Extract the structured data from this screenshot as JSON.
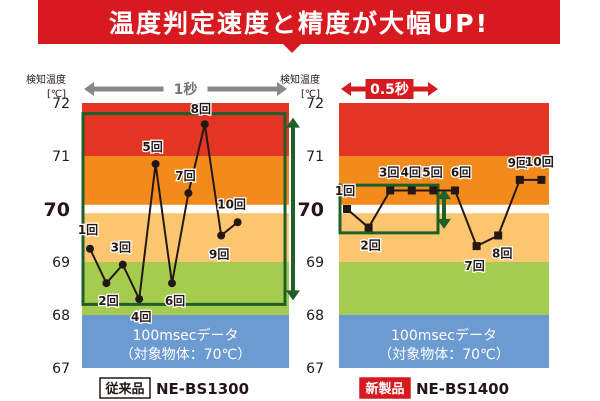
{
  "headline": "温度判定速度と精度が大幅UP!",
  "colors": {
    "band_red": "#e33524",
    "band_orange": "#f28b1c",
    "band_light_orange": "#fbc66f",
    "band_green": "#a5cc4e",
    "band_blue": "#6c9bd2",
    "line": "#231815",
    "box": "#1f5f2a",
    "gray_arrow": "#888888",
    "red": "#d71920"
  },
  "chart_data": [
    {
      "type": "line",
      "product_tag": "従来品",
      "model": "NE-BS1300",
      "axis_title": [
        "検知温度",
        "[℃]"
      ],
      "time_label": "1秒",
      "band_note": [
        "100msecデータ",
        "（対象物体：70℃）"
      ],
      "ylim": [
        67,
        72
      ],
      "y_ticks": [
        72,
        71,
        70,
        69,
        68,
        67
      ],
      "bands": [
        {
          "from": 71.0,
          "to": 72.0,
          "color": "band_red"
        },
        {
          "from": 70.08,
          "to": 71.0,
          "color": "band_orange"
        },
        {
          "from": 69.0,
          "to": 69.92,
          "color": "band_light_orange"
        },
        {
          "from": 68.0,
          "to": 69.0,
          "color": "band_green"
        },
        {
          "from": 67.0,
          "to": 68.0,
          "color": "band_blue"
        }
      ],
      "series": [
        {
          "labels": [
            "1回",
            "2回",
            "3回",
            "4回",
            "5回",
            "6回",
            "7回",
            "8回",
            "9回",
            "10回"
          ],
          "values": [
            69.25,
            68.6,
            68.95,
            68.3,
            70.85,
            68.6,
            70.3,
            71.6,
            69.5,
            69.75
          ]
        }
      ],
      "range_box": [
        68.2,
        71.8
      ]
    },
    {
      "type": "line",
      "product_tag": "新製品",
      "model": "NE-BS1400",
      "axis_title": [
        "検知温度",
        "[℃]"
      ],
      "time_label": "0.5秒",
      "band_note": [
        "100msecデータ",
        "（対象物体：70℃）"
      ],
      "ylim": [
        67,
        72
      ],
      "y_ticks": [
        72,
        71,
        70,
        69,
        68,
        67
      ],
      "bands": [
        {
          "from": 71.0,
          "to": 72.0,
          "color": "band_red"
        },
        {
          "from": 70.08,
          "to": 71.0,
          "color": "band_orange"
        },
        {
          "from": 69.0,
          "to": 69.92,
          "color": "band_light_orange"
        },
        {
          "from": 68.0,
          "to": 69.0,
          "color": "band_green"
        },
        {
          "from": 67.0,
          "to": 68.0,
          "color": "band_blue"
        }
      ],
      "series": [
        {
          "labels": [
            "1回",
            "2回",
            "3回",
            "4回",
            "5回",
            "6回",
            "7回",
            "8回",
            "9回",
            "10回"
          ],
          "values": [
            70.0,
            69.65,
            70.35,
            70.35,
            70.35,
            70.35,
            69.3,
            69.5,
            70.55,
            70.55
          ]
        }
      ],
      "range_box": [
        69.55,
        70.45
      ]
    }
  ]
}
